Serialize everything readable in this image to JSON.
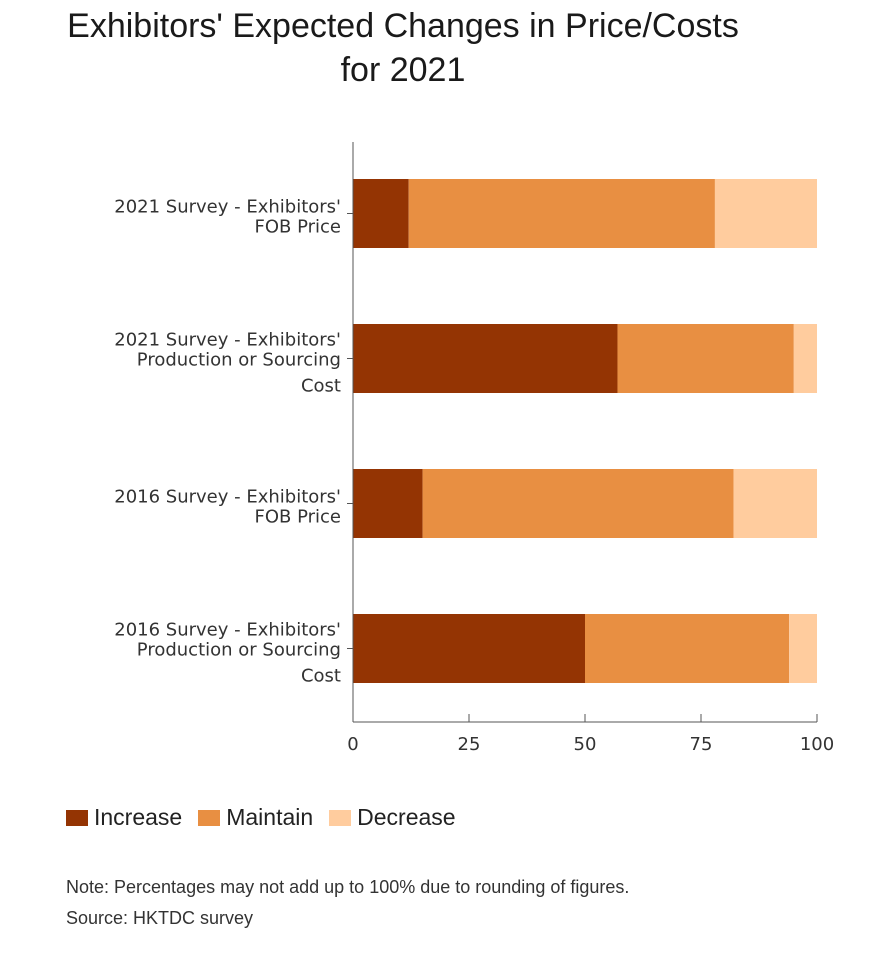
{
  "chart_data": {
    "type": "bar",
    "orientation": "horizontal",
    "stacked": true,
    "title": [
      "Exhibitors' Expected Changes in Price/Costs",
      "for 2021"
    ],
    "categories": [
      [
        "2021 Survey - Exhibitors'",
        "FOB Price"
      ],
      [
        "2021 Survey - Exhibitors'",
        "Production or Sourcing",
        "Cost"
      ],
      [
        "2016 Survey - Exhibitors'",
        "FOB Price"
      ],
      [
        "2016 Survey - Exhibitors'",
        "Production or Sourcing",
        "Cost"
      ]
    ],
    "series": [
      {
        "name": "Increase",
        "color": "#943403",
        "values": [
          12,
          57,
          15,
          50
        ]
      },
      {
        "name": "Maintain",
        "color": "#E88F42",
        "values": [
          66,
          38,
          67,
          44
        ]
      },
      {
        "name": "Decrease",
        "color": "#FFCC9E",
        "values": [
          22,
          5,
          18,
          6
        ]
      }
    ],
    "xlim": [
      0,
      100
    ],
    "xticks": [
      "0",
      "25",
      "50",
      "75",
      "100"
    ],
    "xlabel": "",
    "ylabel": "",
    "grid": false,
    "legend_position": "bottom-left"
  },
  "notes": {
    "note": "Note: Percentages may not add up to 100% due to rounding of figures.",
    "source": "Source: HKTDC survey"
  }
}
